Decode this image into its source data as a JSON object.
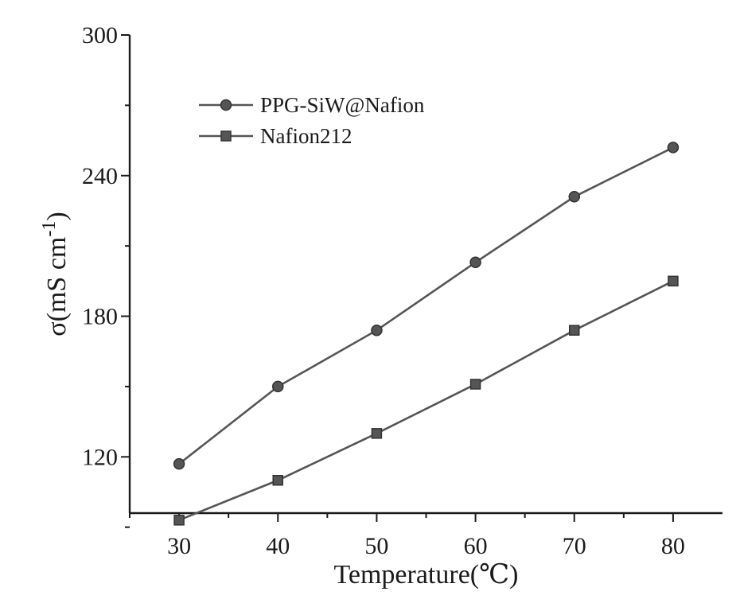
{
  "chart_data": {
    "type": "line",
    "title": "",
    "xlabel": "Temperature(℃)",
    "ylabel_parts": {
      "main": "σ(mS cm",
      "sup": "-1",
      "close": ")"
    },
    "x": [
      30,
      40,
      50,
      60,
      70,
      80
    ],
    "xlim": [
      25,
      85
    ],
    "ylim": [
      96,
      300
    ],
    "x_ticks": [
      30,
      40,
      50,
      60,
      70,
      80
    ],
    "y_ticks": [
      120,
      180,
      240,
      300
    ],
    "grid": false,
    "legend_position": "top-left",
    "series": [
      {
        "name": "PPG-SiW@Nafion",
        "marker": "circle",
        "color": "#555555",
        "values": [
          117,
          150,
          174,
          203,
          231,
          252
        ]
      },
      {
        "name": "Nafion212",
        "marker": "square",
        "color": "#555555",
        "values": [
          93,
          110,
          130,
          151,
          174,
          195
        ]
      }
    ]
  }
}
